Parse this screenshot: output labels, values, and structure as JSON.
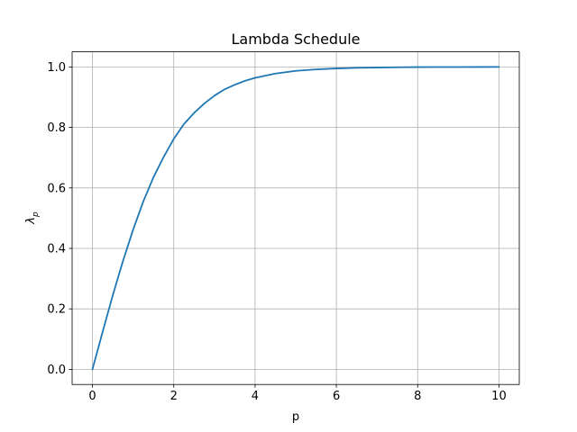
{
  "chart_data": {
    "type": "line",
    "title": "Lambda Schedule",
    "xlabel": "p",
    "ylabel": "λ",
    "ylabel_subscript": "p",
    "xlim": [
      -0.5,
      10.5
    ],
    "ylim": [
      -0.05,
      1.05
    ],
    "xticks": [
      0,
      2,
      4,
      6,
      8,
      10
    ],
    "xtick_labels": [
      "0",
      "2",
      "4",
      "6",
      "8",
      "10"
    ],
    "yticks": [
      0.0,
      0.2,
      0.4,
      0.6,
      0.8,
      1.0
    ],
    "ytick_labels": [
      "0.0",
      "0.2",
      "0.4",
      "0.6",
      "0.8",
      "1.0"
    ],
    "grid": true,
    "line_color": "#1f77b4",
    "grid_color": "#b0b0b0",
    "series": [
      {
        "x": [
          0,
          0.25,
          0.5,
          0.75,
          1.0,
          1.25,
          1.5,
          1.75,
          2.0,
          2.25,
          2.5,
          2.75,
          3.0,
          3.25,
          3.5,
          3.75,
          4.0,
          4.5,
          5.0,
          5.5,
          6.0,
          6.5,
          7.0,
          7.5,
          8.0,
          8.5,
          9.0,
          9.5,
          10.0
        ],
        "values": [
          0.0,
          0.124,
          0.245,
          0.358,
          0.462,
          0.555,
          0.635,
          0.702,
          0.762,
          0.811,
          0.848,
          0.879,
          0.905,
          0.926,
          0.941,
          0.954,
          0.964,
          0.978,
          0.987,
          0.992,
          0.995,
          0.997,
          0.998,
          0.999,
          0.9995,
          0.9997,
          0.9998,
          0.9999,
          1.0
        ]
      }
    ]
  }
}
